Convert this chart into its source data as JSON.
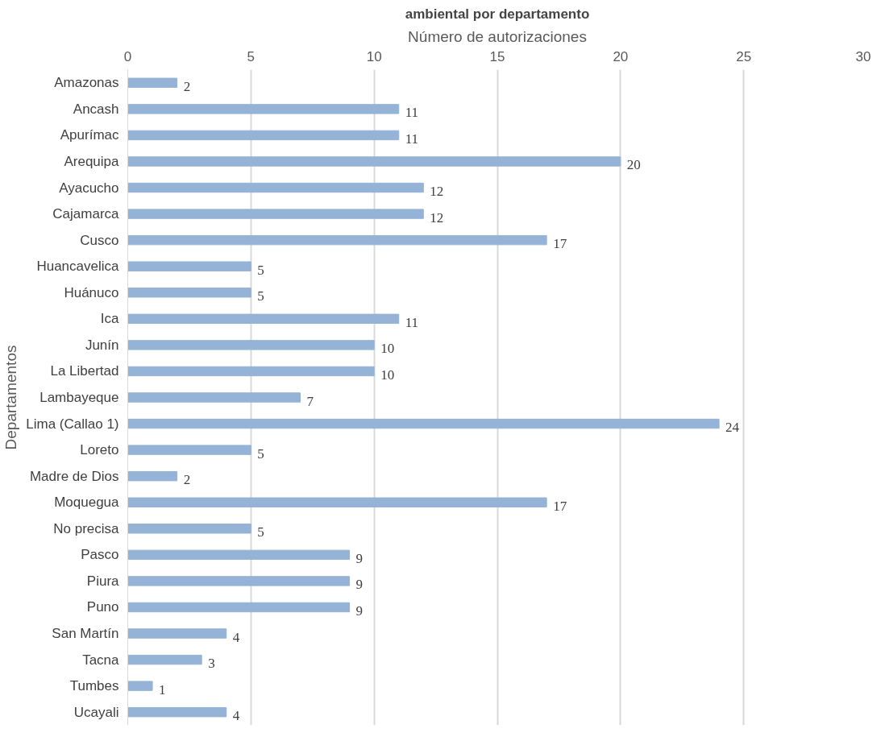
{
  "chart_data": {
    "type": "bar",
    "orientation": "horizontal",
    "title": "ambiental por departamento",
    "xlabel": "Número de autorizaciones",
    "ylabel": "Departamentos",
    "categories": [
      "Amazonas",
      "Ancash",
      "Apurímac",
      "Arequipa",
      "Ayacucho",
      "Cajamarca",
      "Cusco",
      "Huancavelica",
      "Huánuco",
      "Ica",
      "Junín",
      "La Libertad",
      "Lambayeque",
      "Lima (Callao 1)",
      "Loreto",
      "Madre de Dios",
      "Moquegua",
      "No precisa",
      "Pasco",
      "Piura",
      "Puno",
      "San Martín",
      "Tacna",
      "Tumbes",
      "Ucayali"
    ],
    "values": [
      2,
      11,
      11,
      20,
      12,
      12,
      17,
      5,
      5,
      11,
      10,
      10,
      7,
      24,
      5,
      2,
      17,
      5,
      9,
      9,
      9,
      4,
      3,
      1,
      4
    ],
    "color": "#95b3d7",
    "xlim": [
      0,
      30
    ],
    "xticks": [
      0,
      5,
      10,
      15,
      20,
      25,
      30
    ],
    "grid": "x",
    "data_labels": true
  }
}
